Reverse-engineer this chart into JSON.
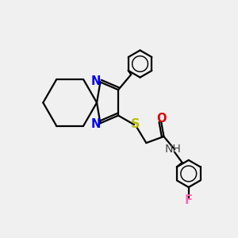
{
  "bg_color": "#f0f0f0",
  "atom_colors": {
    "C": "#000000",
    "N": "#0000ee",
    "O": "#dd0000",
    "S": "#bbbb00",
    "F": "#ff69b4",
    "H": "#444444"
  },
  "line_color": "#000000",
  "line_width": 1.6,
  "font_size": 10.5,
  "figsize": [
    3.0,
    3.0
  ],
  "dpi": 100
}
